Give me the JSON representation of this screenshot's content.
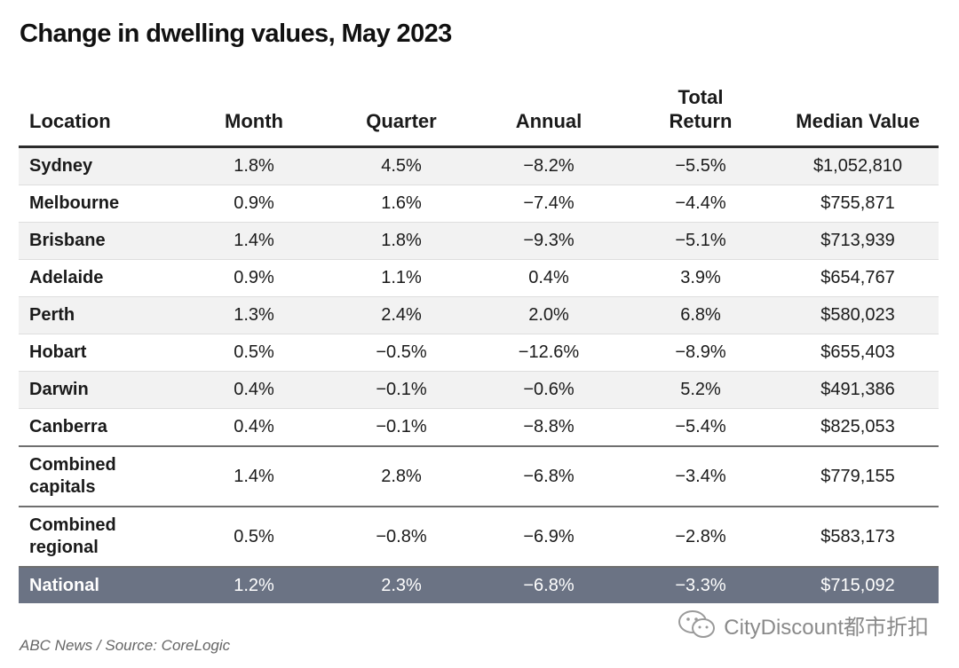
{
  "title": "Change in dwelling values, May 2023",
  "source": "ABC News / Source: CoreLogic",
  "watermark": "CityDiscount都市折扣",
  "colors": {
    "national_row": "#6b7384",
    "stripe": "#f2f2f2"
  },
  "chart_data": {
    "type": "table",
    "title": "Change in dwelling values, May 2023",
    "columns": [
      "Location",
      "Month",
      "Quarter",
      "Annual",
      "Total\nReturn",
      "Median Value"
    ],
    "rows": [
      [
        "Sydney",
        "1.8%",
        "4.5%",
        "−8.2%",
        "−5.5%",
        "$1,052,810"
      ],
      [
        "Melbourne",
        "0.9%",
        "1.6%",
        "−7.4%",
        "−4.4%",
        "$755,871"
      ],
      [
        "Brisbane",
        "1.4%",
        "1.8%",
        "−9.3%",
        "−5.1%",
        "$713,939"
      ],
      [
        "Adelaide",
        "0.9%",
        "1.1%",
        "0.4%",
        "3.9%",
        "$654,767"
      ],
      [
        "Perth",
        "1.3%",
        "2.4%",
        "2.0%",
        "6.8%",
        "$580,023"
      ],
      [
        "Hobart",
        "0.5%",
        "−0.5%",
        "−12.6%",
        "−8.9%",
        "$655,403"
      ],
      [
        "Darwin",
        "0.4%",
        "−0.1%",
        "−0.6%",
        "5.2%",
        "$491,386"
      ],
      [
        "Canberra",
        "0.4%",
        "−0.1%",
        "−8.8%",
        "−5.4%",
        "$825,053"
      ],
      [
        "Combined\ncapitals",
        "1.4%",
        "2.8%",
        "−6.8%",
        "−3.4%",
        "$779,155"
      ],
      [
        "Combined\nregional",
        "0.5%",
        "−0.8%",
        "−6.9%",
        "−2.8%",
        "$583,173"
      ],
      [
        "National",
        "1.2%",
        "2.3%",
        "−6.8%",
        "−3.3%",
        "$715,092"
      ]
    ]
  }
}
